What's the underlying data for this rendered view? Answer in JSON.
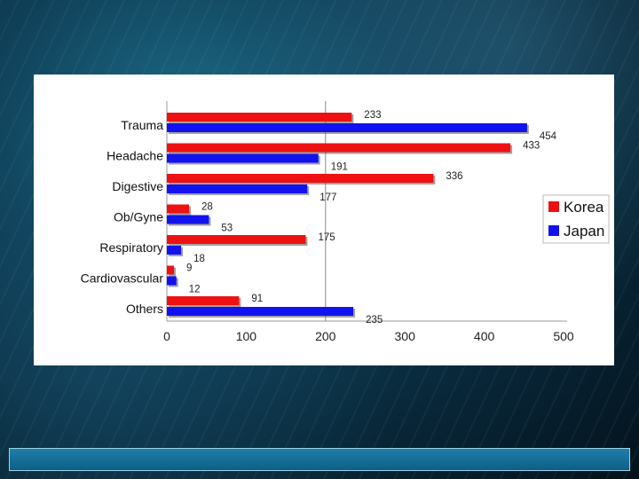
{
  "footer": {
    "text": ""
  },
  "colors": {
    "korea": "#ee1111",
    "japan": "#1212ee"
  },
  "chart_data": {
    "type": "bar",
    "orientation": "horizontal",
    "categories": [
      "Trauma",
      "Headache",
      "Digestive",
      "Ob/Gyne",
      "Respiratory",
      "Cardiovascular",
      "Others"
    ],
    "series": [
      {
        "name": "Korea",
        "values": [
          233,
          433,
          336,
          28,
          175,
          9,
          91
        ]
      },
      {
        "name": "Japan",
        "values": [
          454,
          191,
          177,
          53,
          18,
          12,
          235
        ]
      }
    ],
    "x_ticks": [
      "0",
      "100",
      "200",
      "300",
      "400",
      "500"
    ],
    "xlim": [
      0,
      500
    ],
    "legend_position": "right",
    "reference_line": 200
  }
}
